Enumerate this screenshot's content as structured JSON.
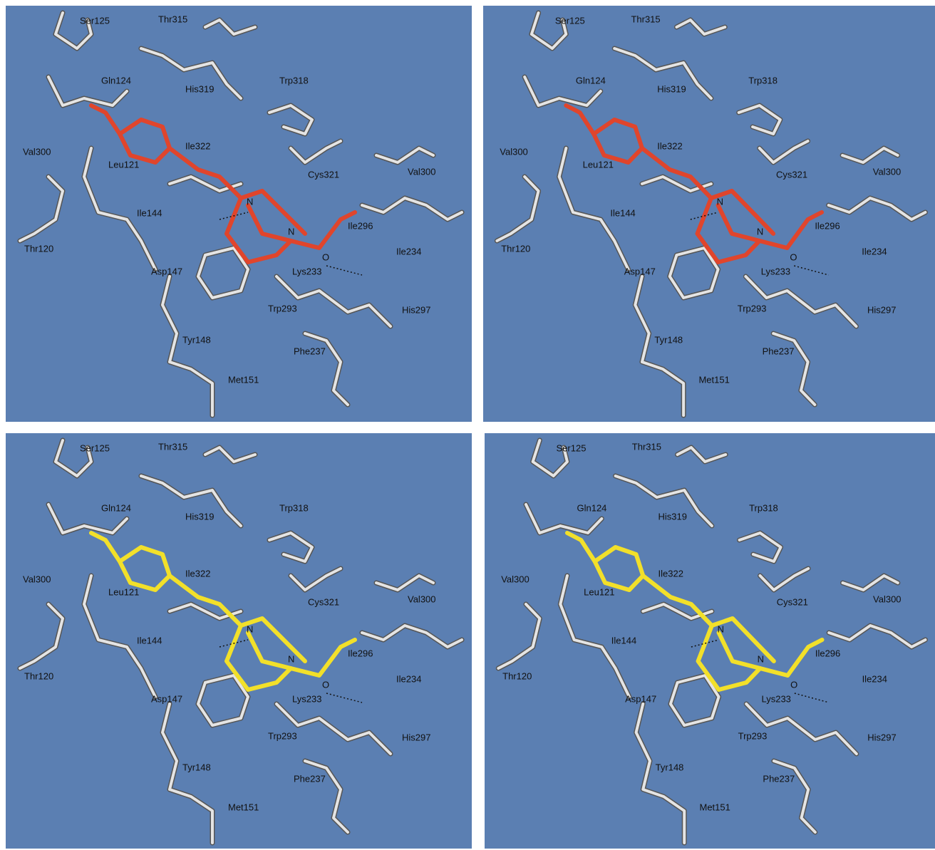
{
  "panels": [
    {
      "labels": [
        "Ser125",
        "Thr315",
        "Gln124",
        "His319",
        "Trp318",
        "Val300",
        "Ile322",
        "Leu121",
        "Cys321",
        "Val300",
        "N",
        "Ile144",
        "Ile296",
        "N",
        "Thr120",
        "O",
        "Ile234",
        "Asp147",
        "Lys233",
        "Trp293",
        "His297",
        "Tyr148",
        "Phe237",
        "Met151"
      ]
    },
    {
      "labels": [
        "Ser125",
        "Thr315",
        "Gln124",
        "His319",
        "Trp318",
        "Val300",
        "Ile322",
        "Leu121",
        "Cys321",
        "Val300",
        "N",
        "Ile144",
        "Ile296",
        "N",
        "Thr120",
        "O",
        "Ile234",
        "Asp147",
        "Lys233",
        "Trp293",
        "His297",
        "Tyr148",
        "Phe237",
        "Met151"
      ]
    },
    {
      "labels": [
        "Ser125",
        "Thr315",
        "Gln124",
        "His319",
        "Trp318",
        "Val300",
        "Ile322",
        "Leu121",
        "Cys321",
        "Val300",
        "N",
        "Ile144",
        "Ile296",
        "N",
        "Thr120",
        "O",
        "Ile234",
        "Asp147",
        "Lys233",
        "Trp293",
        "His297",
        "Tyr148",
        "Phe237",
        "Met151"
      ]
    },
    {
      "labels": [
        "Ser125",
        "Thr315",
        "Gln124",
        "His319",
        "Trp318",
        "Val300",
        "Ile322",
        "Leu121",
        "Cys321",
        "Val300",
        "N",
        "Ile144",
        "Ile296",
        "N",
        "Thr120",
        "O",
        "Ile234",
        "Asp147",
        "Lys233",
        "Trp293",
        "His297",
        "Tyr148",
        "Phe237",
        "Met151"
      ]
    }
  ]
}
